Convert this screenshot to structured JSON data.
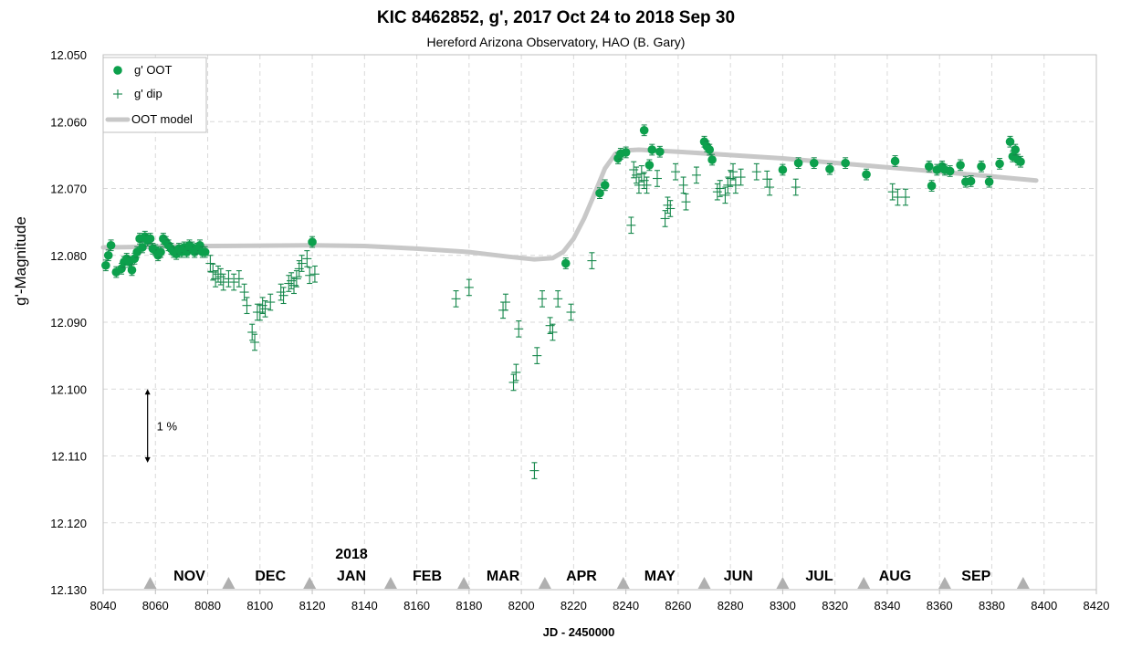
{
  "chart_data": {
    "type": "scatter",
    "title": "KIC 8462852, g', 2017 Oct 24 to 2018 Sep 30",
    "subtitle": "Hereford Arizona Observatory, HAO (B. Gary)",
    "xlabel": "JD - 2450000",
    "ylabel": "g'-Magnitude",
    "xlim": [
      8040,
      8420
    ],
    "ylim": [
      12.05,
      12.13
    ],
    "y_inverted": false,
    "xticks": [
      "8040",
      "8060",
      "8080",
      "8100",
      "8120",
      "8140",
      "8160",
      "8180",
      "8200",
      "8220",
      "8240",
      "8260",
      "8280",
      "8300",
      "8320",
      "8340",
      "8360",
      "8380",
      "8400",
      "8420"
    ],
    "yticks": [
      "12.050",
      "12.060",
      "12.070",
      "12.080",
      "12.090",
      "12.100",
      "12.110",
      "12.120",
      "12.130"
    ],
    "grid": true,
    "legend_position": "top-left",
    "colors": {
      "oot": "#0ca04c",
      "dip": "#14874a",
      "model": "#c8c8c8",
      "marker": "#b0b0b0"
    },
    "series": [
      {
        "name": "g' OOT",
        "marker": "filled-circle",
        "x": [
          8041,
          8042,
          8043,
          8045,
          8047,
          8048,
          8049,
          8050,
          8051,
          8052,
          8053,
          8054,
          8055,
          8056,
          8057,
          8058,
          8059,
          8060,
          8061,
          8062,
          8063,
          8064,
          8065,
          8066,
          8067,
          8068,
          8069,
          8070,
          8071,
          8072,
          8073,
          8074,
          8075,
          8076,
          8077,
          8078,
          8079,
          8120,
          8217,
          8230,
          8232,
          8237,
          8238,
          8240,
          8247,
          8249,
          8250,
          8253,
          8270,
          8271,
          8272,
          8273,
          8300,
          8306,
          8312,
          8318,
          8324,
          8332,
          8343,
          8356,
          8357,
          8359,
          8361,
          8362,
          8364,
          8368,
          8370,
          8372,
          8376,
          8379,
          8383,
          8387,
          8388,
          8389,
          8390,
          8391
        ],
        "y": [
          12.0815,
          12.08,
          12.0785,
          12.0825,
          12.082,
          12.081,
          12.0805,
          12.081,
          12.0822,
          12.0805,
          12.0795,
          12.0775,
          12.0788,
          12.0772,
          12.0778,
          12.0775,
          12.079,
          12.0792,
          12.08,
          12.0795,
          12.0775,
          12.078,
          12.0785,
          12.079,
          12.0795,
          12.0798,
          12.079,
          12.0795,
          12.0788,
          12.0795,
          12.0785,
          12.0788,
          12.0795,
          12.079,
          12.0785,
          12.0795,
          12.0795,
          12.078,
          12.0812,
          12.0707,
          12.0695,
          12.0655,
          12.0648,
          12.0646,
          12.0613,
          12.0665,
          12.0642,
          12.0645,
          12.063,
          12.0637,
          12.0642,
          12.0657,
          12.0672,
          12.0662,
          12.0662,
          12.0671,
          12.0662,
          12.0679,
          12.0659,
          12.0667,
          12.0696,
          12.0672,
          12.0667,
          12.0672,
          12.0674,
          12.0665,
          12.069,
          12.0689,
          12.0667,
          12.069,
          12.0663,
          12.063,
          12.0652,
          12.0642,
          12.0657,
          12.066
        ],
        "err": 0.0008
      },
      {
        "name": "g' dip",
        "marker": "plus",
        "x": [
          8081,
          8082,
          8083,
          8084,
          8085,
          8086,
          8088,
          8090,
          8092,
          8094,
          8095,
          8097,
          8098,
          8099,
          8100,
          8101,
          8102,
          8104,
          8108,
          8109,
          8111,
          8112,
          8113,
          8114,
          8115,
          8116,
          8118,
          8119,
          8121,
          8175,
          8180,
          8193,
          8194,
          8197,
          8198,
          8199,
          8205,
          8206,
          8208,
          8211,
          8212,
          8214,
          8219,
          8227,
          8242,
          8243,
          8244,
          8245,
          8246,
          8247,
          8248,
          8252,
          8255,
          8256,
          8257,
          8259,
          8262,
          8263,
          8267,
          8275,
          8276,
          8278,
          8279,
          8280,
          8281,
          8282,
          8284,
          8290,
          8294,
          8295,
          8305,
          8342,
          8344,
          8347
        ],
        "y": [
          12.0812,
          12.0825,
          12.0835,
          12.0828,
          12.0832,
          12.084,
          12.0835,
          12.084,
          12.0835,
          12.0855,
          12.0875,
          12.0915,
          12.093,
          12.0885,
          12.0885,
          12.0875,
          12.088,
          12.087,
          12.0855,
          12.086,
          12.0842,
          12.0838,
          12.0845,
          12.0835,
          12.082,
          12.0812,
          12.0805,
          12.083,
          12.0828,
          12.0865,
          12.0848,
          12.0882,
          12.087,
          12.099,
          12.0975,
          12.091,
          12.1122,
          12.095,
          12.0865,
          12.0905,
          12.0915,
          12.0865,
          12.0885,
          12.0808,
          12.0755,
          12.0672,
          12.068,
          12.0695,
          12.0678,
          12.0688,
          12.0695,
          12.0685,
          12.0745,
          12.0725,
          12.073,
          12.0675,
          12.0695,
          12.072,
          12.068,
          12.0705,
          12.07,
          12.071,
          12.0695,
          12.0685,
          12.0675,
          12.0695,
          12.0683,
          12.0675,
          12.0686,
          12.0698,
          12.0698,
          12.0705,
          12.0713,
          12.0713
        ],
        "err": 0.0012
      },
      {
        "name": "OOT model",
        "marker": "line",
        "x": [
          8040,
          8080,
          8120,
          8140,
          8160,
          8180,
          8195,
          8205,
          8212,
          8216,
          8220,
          8224,
          8228,
          8232,
          8236,
          8240,
          8245,
          8250,
          8260,
          8280,
          8300,
          8330,
          8360,
          8380,
          8397
        ],
        "y": [
          12.0788,
          12.0786,
          12.0785,
          12.0786,
          12.079,
          12.0795,
          12.0802,
          12.0806,
          12.0804,
          12.0795,
          12.0775,
          12.0745,
          12.0708,
          12.067,
          12.0648,
          12.0643,
          12.0642,
          12.0643,
          12.0645,
          12.065,
          12.0655,
          12.0665,
          12.0675,
          12.0682,
          12.0688
        ]
      }
    ],
    "month_labels": [
      {
        "label": "NOV",
        "x": 8073
      },
      {
        "label": "DEC",
        "x": 8104
      },
      {
        "label": "2018",
        "x": 8135,
        "top": true
      },
      {
        "label": "JAN",
        "x": 8135
      },
      {
        "label": "FEB",
        "x": 8164
      },
      {
        "label": "MAR",
        "x": 8193
      },
      {
        "label": "APR",
        "x": 8223
      },
      {
        "label": "MAY",
        "x": 8253
      },
      {
        "label": "JUN",
        "x": 8283
      },
      {
        "label": "JUL",
        "x": 8314
      },
      {
        "label": "AUG",
        "x": 8343
      },
      {
        "label": "SEP",
        "x": 8374
      }
    ],
    "month_boundaries": [
      8058,
      8088,
      8119,
      8150,
      8178,
      8209,
      8239,
      8270,
      8300,
      8331,
      8362,
      8392
    ],
    "scale_bar": {
      "label": "1 %",
      "x": 8057,
      "y1": 12.1,
      "y2": 12.111
    }
  }
}
